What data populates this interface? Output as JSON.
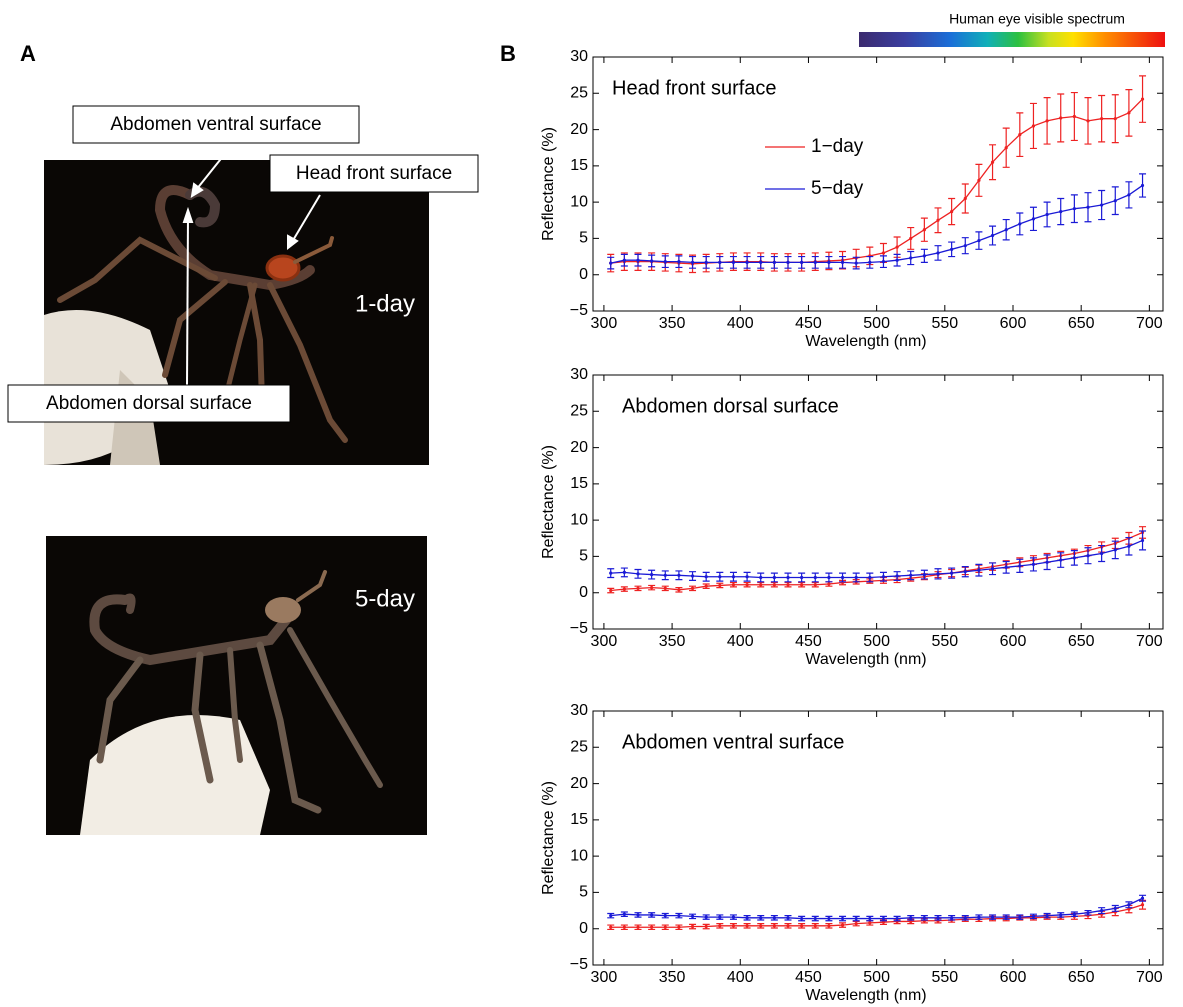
{
  "panel_labels": [
    "A",
    "B"
  ],
  "photo_labels": [
    "1-day",
    "5-day"
  ],
  "annotations": [
    "Abdomen ventral surface",
    "Head front surface",
    "Abdomen dorsal surface"
  ],
  "spectrum_label": "Human eye visible spectrum",
  "chart_data": [
    {
      "type": "line",
      "title": "Head front surface",
      "xlabel": "Wavelength (nm)",
      "ylabel": "Reflectance (%)",
      "x": [
        305,
        315,
        325,
        335,
        345,
        355,
        365,
        375,
        385,
        395,
        405,
        415,
        425,
        435,
        445,
        455,
        465,
        475,
        485,
        495,
        505,
        515,
        525,
        535,
        545,
        555,
        565,
        575,
        585,
        595,
        605,
        615,
        625,
        635,
        645,
        655,
        665,
        675,
        685,
        695
      ],
      "xlim": [
        292,
        710
      ],
      "xticks": [
        300,
        350,
        400,
        450,
        500,
        550,
        600,
        650,
        700
      ],
      "ylim": [
        -5,
        30
      ],
      "yticks": [
        {
          "value": -5,
          "label": "−5"
        },
        0,
        5,
        10,
        15,
        20,
        25,
        30
      ],
      "legend": true,
      "series": [
        {
          "name": "1−day",
          "color": "#ee2222",
          "values": [
            1.6,
            1.8,
            1.8,
            1.8,
            1.7,
            1.6,
            1.5,
            1.6,
            1.7,
            1.8,
            1.8,
            1.8,
            1.7,
            1.7,
            1.7,
            1.8,
            1.9,
            2.0,
            2.3,
            2.6,
            3.0,
            3.8,
            5.0,
            6.2,
            7.5,
            8.7,
            10.5,
            13,
            15.5,
            17.5,
            19.3,
            20.5,
            21.2,
            21.6,
            21.8,
            21.2,
            21.5,
            21.5,
            22.3,
            24.2
          ],
          "errors": [
            1.2,
            1.2,
            1.2,
            1.2,
            1.2,
            1.2,
            1.2,
            1.2,
            1.2,
            1.2,
            1.2,
            1.2,
            1.2,
            1.2,
            1.2,
            1.2,
            1.2,
            1.2,
            1.2,
            1.2,
            1.3,
            1.4,
            1.5,
            1.6,
            1.7,
            1.8,
            2.0,
            2.2,
            2.4,
            2.7,
            3.0,
            3.1,
            3.2,
            3.3,
            3.3,
            3.2,
            3.2,
            3.3,
            3.2,
            3.2
          ]
        },
        {
          "name": "5−day",
          "color": "#1a1ad6",
          "values": [
            1.6,
            2.0,
            2.0,
            1.9,
            1.8,
            1.8,
            1.7,
            1.7,
            1.7,
            1.7,
            1.7,
            1.7,
            1.7,
            1.7,
            1.7,
            1.7,
            1.7,
            1.7,
            1.6,
            1.7,
            1.8,
            2.0,
            2.3,
            2.6,
            3.0,
            3.5,
            4.0,
            4.7,
            5.4,
            6.2,
            7.0,
            7.7,
            8.3,
            8.7,
            9.1,
            9.3,
            9.6,
            10.2,
            11.0,
            12.3
          ],
          "errors": [
            0.8,
            0.8,
            0.8,
            0.8,
            0.8,
            0.8,
            0.8,
            0.8,
            0.8,
            0.8,
            0.8,
            0.8,
            0.8,
            0.8,
            0.8,
            0.8,
            0.8,
            0.8,
            0.8,
            0.8,
            0.8,
            0.8,
            0.9,
            0.9,
            1.0,
            1.0,
            1.1,
            1.2,
            1.3,
            1.4,
            1.5,
            1.6,
            1.7,
            1.8,
            1.9,
            2.0,
            2.0,
            1.9,
            1.8,
            1.6
          ]
        }
      ]
    },
    {
      "type": "line",
      "title": "Abdomen dorsal surface",
      "xlabel": "Wavelength (nm)",
      "ylabel": "Reflectance (%)",
      "x": [
        305,
        315,
        325,
        335,
        345,
        355,
        365,
        375,
        385,
        395,
        405,
        415,
        425,
        435,
        445,
        455,
        465,
        475,
        485,
        495,
        505,
        515,
        525,
        535,
        545,
        555,
        565,
        575,
        585,
        595,
        605,
        615,
        625,
        635,
        645,
        655,
        665,
        675,
        685,
        695
      ],
      "xlim": [
        292,
        710
      ],
      "xticks": [
        300,
        350,
        400,
        450,
        500,
        550,
        600,
        650,
        700
      ],
      "ylim": [
        -5,
        30
      ],
      "yticks": [
        {
          "value": -5,
          "label": "−5"
        },
        0,
        5,
        10,
        15,
        20,
        25,
        30
      ],
      "legend": false,
      "series": [
        {
          "color": "#ee2222",
          "values": [
            0.3,
            0.5,
            0.6,
            0.7,
            0.6,
            0.4,
            0.6,
            0.9,
            1.0,
            1.1,
            1.1,
            1.1,
            1.1,
            1.1,
            1.1,
            1.1,
            1.2,
            1.4,
            1.5,
            1.6,
            1.7,
            1.8,
            2.0,
            2.2,
            2.5,
            2.7,
            3.0,
            3.3,
            3.6,
            3.9,
            4.2,
            4.5,
            4.8,
            5.1,
            5.4,
            5.8,
            6.3,
            6.8,
            7.5,
            8.3
          ],
          "errors": [
            0.3,
            0.3,
            0.3,
            0.3,
            0.3,
            0.3,
            0.3,
            0.3,
            0.3,
            0.3,
            0.3,
            0.3,
            0.3,
            0.3,
            0.3,
            0.3,
            0.3,
            0.3,
            0.3,
            0.3,
            0.4,
            0.4,
            0.4,
            0.4,
            0.4,
            0.5,
            0.5,
            0.5,
            0.5,
            0.5,
            0.6,
            0.6,
            0.6,
            0.6,
            0.6,
            0.7,
            0.7,
            0.7,
            0.8,
            0.8
          ]
        },
        {
          "color": "#1a1ad6",
          "values": [
            2.7,
            2.8,
            2.6,
            2.5,
            2.4,
            2.4,
            2.3,
            2.2,
            2.2,
            2.2,
            2.2,
            2.1,
            2.1,
            2.1,
            2.1,
            2.1,
            2.1,
            2.1,
            2.1,
            2.1,
            2.2,
            2.3,
            2.4,
            2.5,
            2.6,
            2.7,
            2.9,
            3.1,
            3.3,
            3.5,
            3.7,
            3.9,
            4.2,
            4.5,
            4.8,
            5.1,
            5.4,
            5.9,
            6.4,
            7.2
          ],
          "errors": [
            0.6,
            0.6,
            0.6,
            0.6,
            0.6,
            0.6,
            0.6,
            0.6,
            0.6,
            0.6,
            0.6,
            0.6,
            0.6,
            0.6,
            0.6,
            0.6,
            0.6,
            0.6,
            0.6,
            0.6,
            0.6,
            0.6,
            0.6,
            0.6,
            0.7,
            0.7,
            0.7,
            0.8,
            0.8,
            0.8,
            0.9,
            0.9,
            1.0,
            1.0,
            1.0,
            1.1,
            1.1,
            1.2,
            1.2,
            1.3
          ]
        }
      ]
    },
    {
      "type": "line",
      "title": "Abdomen ventral surface",
      "xlabel": "Wavelength (nm)",
      "ylabel": "Reflectance (%)",
      "x": [
        305,
        315,
        325,
        335,
        345,
        355,
        365,
        375,
        385,
        395,
        405,
        415,
        425,
        435,
        445,
        455,
        465,
        475,
        485,
        495,
        505,
        515,
        525,
        535,
        545,
        555,
        565,
        575,
        585,
        595,
        605,
        615,
        625,
        635,
        645,
        655,
        665,
        675,
        685,
        695
      ],
      "xlim": [
        292,
        710
      ],
      "xticks": [
        300,
        350,
        400,
        450,
        500,
        550,
        600,
        650,
        700
      ],
      "ylim": [
        -5,
        30
      ],
      "yticks": [
        {
          "value": -5,
          "label": "−5"
        },
        0,
        5,
        10,
        15,
        20,
        25,
        30
      ],
      "legend": false,
      "series": [
        {
          "color": "#ee2222",
          "values": [
            0.2,
            0.2,
            0.2,
            0.2,
            0.2,
            0.2,
            0.3,
            0.3,
            0.4,
            0.4,
            0.4,
            0.4,
            0.4,
            0.4,
            0.4,
            0.4,
            0.4,
            0.5,
            0.7,
            0.8,
            0.9,
            1.0,
            1.0,
            1.1,
            1.1,
            1.2,
            1.3,
            1.3,
            1.4,
            1.4,
            1.5,
            1.5,
            1.6,
            1.6,
            1.7,
            1.8,
            2.0,
            2.3,
            2.7,
            3.3
          ],
          "errors": [
            0.3,
            0.3,
            0.3,
            0.3,
            0.3,
            0.3,
            0.3,
            0.3,
            0.3,
            0.3,
            0.3,
            0.3,
            0.3,
            0.3,
            0.3,
            0.3,
            0.3,
            0.3,
            0.3,
            0.3,
            0.3,
            0.3,
            0.3,
            0.3,
            0.3,
            0.3,
            0.3,
            0.3,
            0.3,
            0.3,
            0.3,
            0.3,
            0.3,
            0.3,
            0.4,
            0.4,
            0.4,
            0.5,
            0.5,
            0.6
          ]
        },
        {
          "color": "#1a1ad6",
          "values": [
            1.8,
            2.0,
            1.9,
            1.9,
            1.8,
            1.8,
            1.7,
            1.6,
            1.6,
            1.6,
            1.5,
            1.5,
            1.5,
            1.5,
            1.4,
            1.4,
            1.4,
            1.4,
            1.4,
            1.4,
            1.4,
            1.4,
            1.5,
            1.5,
            1.5,
            1.5,
            1.5,
            1.6,
            1.6,
            1.6,
            1.6,
            1.7,
            1.8,
            1.9,
            2.0,
            2.2,
            2.5,
            2.8,
            3.3,
            4.2
          ],
          "errors": [
            0.3,
            0.3,
            0.3,
            0.3,
            0.3,
            0.3,
            0.3,
            0.3,
            0.3,
            0.3,
            0.3,
            0.3,
            0.3,
            0.3,
            0.3,
            0.3,
            0.3,
            0.3,
            0.3,
            0.3,
            0.3,
            0.3,
            0.3,
            0.3,
            0.3,
            0.3,
            0.3,
            0.3,
            0.3,
            0.3,
            0.3,
            0.3,
            0.3,
            0.3,
            0.3,
            0.3,
            0.4,
            0.4,
            0.4,
            0.4
          ]
        }
      ]
    }
  ]
}
